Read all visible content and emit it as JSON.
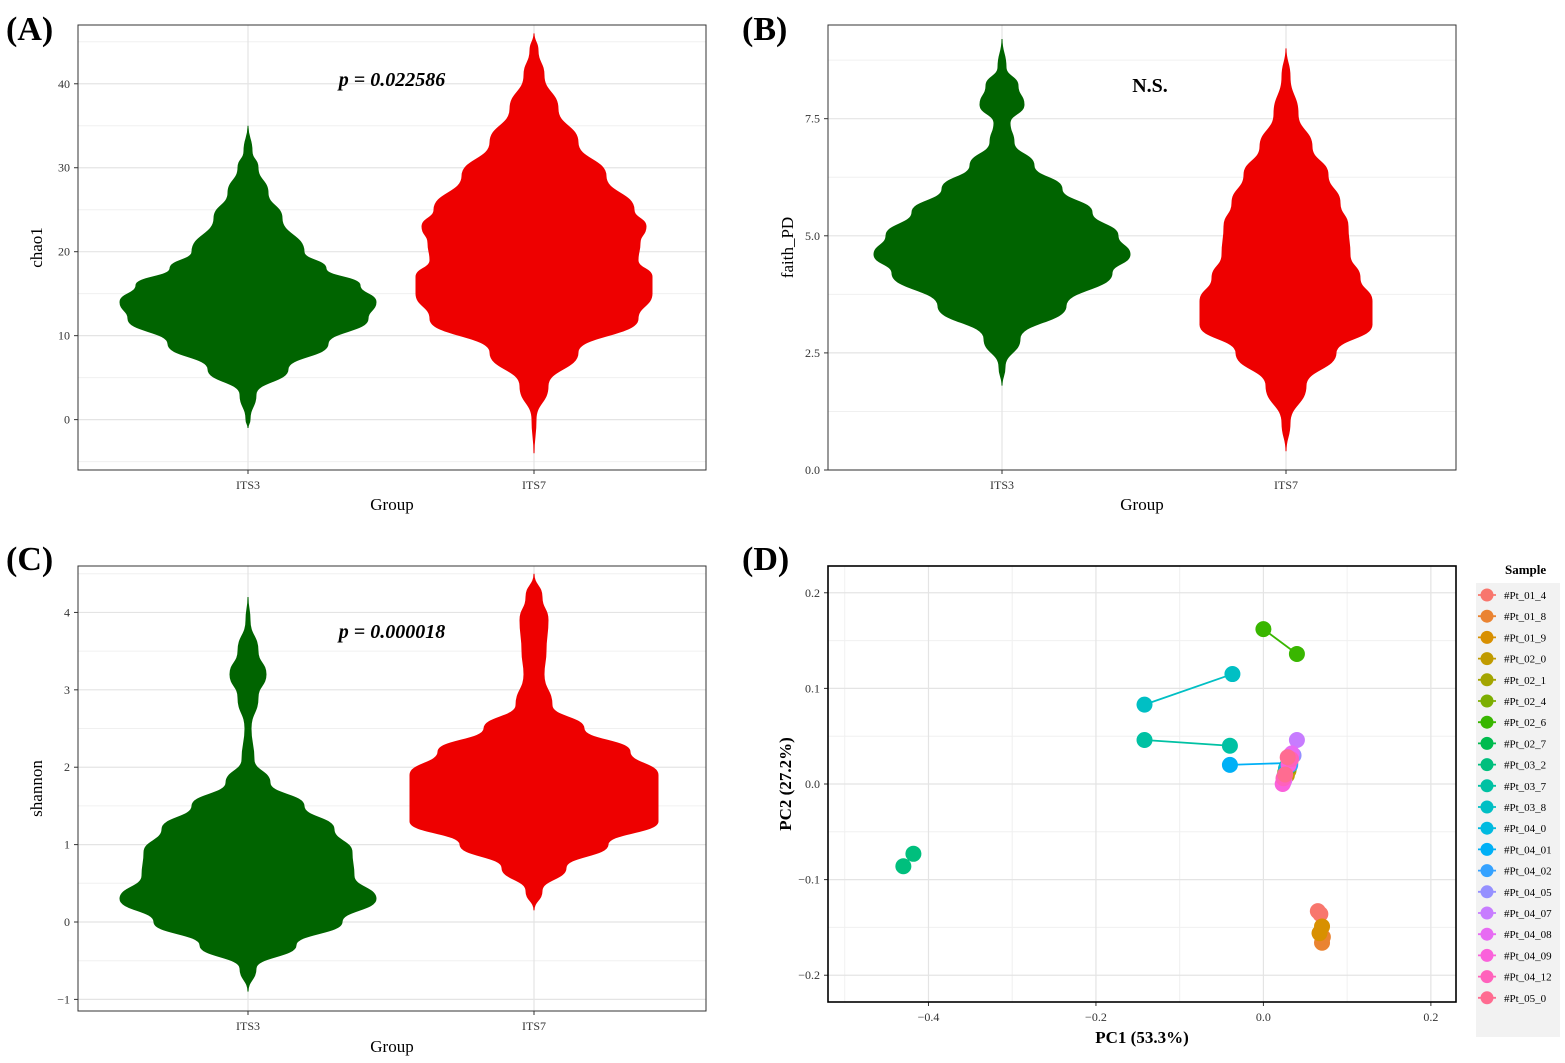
{
  "chart_data": [
    {
      "type": "violin",
      "panel_label": "(A)",
      "annotation": "p = 0.022586",
      "xlabel": "Group",
      "ylabel": "chao1",
      "categories": [
        "ITS3",
        "ITS7"
      ],
      "ylim": [
        -6,
        47
      ],
      "yticks": [
        0,
        10,
        20,
        30,
        40
      ],
      "colors": [
        "#006400",
        "#ee0000"
      ],
      "grid": true,
      "density": [
        [
          [
            -1,
            0
          ],
          [
            0,
            2
          ],
          [
            3,
            8
          ],
          [
            6,
            40
          ],
          [
            9,
            80
          ],
          [
            12,
            120
          ],
          [
            14,
            128
          ],
          [
            16,
            112
          ],
          [
            18,
            78
          ],
          [
            20,
            56
          ],
          [
            24,
            34
          ],
          [
            27,
            20
          ],
          [
            30,
            10
          ],
          [
            32,
            4
          ],
          [
            35,
            0
          ]
        ],
        [
          [
            -4,
            0
          ],
          [
            0,
            2
          ],
          [
            4,
            14
          ],
          [
            8,
            44
          ],
          [
            12,
            104
          ],
          [
            15,
            118
          ],
          [
            17,
            118
          ],
          [
            19,
            104
          ],
          [
            21,
            106
          ],
          [
            23,
            112
          ],
          [
            25,
            100
          ],
          [
            29,
            72
          ],
          [
            33,
            44
          ],
          [
            37,
            24
          ],
          [
            41,
            10
          ],
          [
            44,
            4
          ],
          [
            46,
            0
          ]
        ]
      ]
    },
    {
      "type": "violin",
      "panel_label": "(B)",
      "annotation": "N.S.",
      "xlabel": "Group",
      "ylabel": "faith_PD",
      "categories": [
        "ITS3",
        "ITS7"
      ],
      "ylim": [
        0,
        9.5
      ],
      "yticks": [
        0.0,
        2.5,
        5.0,
        7.5
      ],
      "colors": [
        "#006400",
        "#ee0000"
      ],
      "grid": true,
      "density": [
        [
          [
            1.8,
            0
          ],
          [
            2.2,
            3
          ],
          [
            2.8,
            18
          ],
          [
            3.5,
            64
          ],
          [
            4.2,
            110
          ],
          [
            4.6,
            128
          ],
          [
            5.0,
            116
          ],
          [
            5.5,
            90
          ],
          [
            6.0,
            60
          ],
          [
            6.5,
            32
          ],
          [
            7.0,
            12
          ],
          [
            7.4,
            8
          ],
          [
            7.8,
            22
          ],
          [
            8.2,
            16
          ],
          [
            8.6,
            4
          ],
          [
            9.2,
            0
          ]
        ],
        [
          [
            0.4,
            0
          ],
          [
            1.0,
            4
          ],
          [
            1.8,
            20
          ],
          [
            2.5,
            50
          ],
          [
            3.1,
            86
          ],
          [
            3.6,
            86
          ],
          [
            4.1,
            74
          ],
          [
            4.6,
            64
          ],
          [
            5.2,
            62
          ],
          [
            5.7,
            54
          ],
          [
            6.3,
            42
          ],
          [
            6.9,
            26
          ],
          [
            7.6,
            12
          ],
          [
            8.4,
            4
          ],
          [
            9.0,
            0
          ]
        ]
      ]
    },
    {
      "type": "violin",
      "panel_label": "(C)",
      "annotation": "p = 0.000018",
      "xlabel": "Group",
      "ylabel": "shannon",
      "categories": [
        "ITS3",
        "ITS7"
      ],
      "ylim": [
        -1.15,
        4.6
      ],
      "yticks": [
        -1,
        0,
        1,
        2,
        3,
        4
      ],
      "colors": [
        "#006400",
        "#ee0000"
      ],
      "grid": true,
      "density": [
        [
          [
            -0.9,
            0
          ],
          [
            -0.6,
            8
          ],
          [
            -0.3,
            48
          ],
          [
            0,
            94
          ],
          [
            0.3,
            128
          ],
          [
            0.6,
            106
          ],
          [
            0.9,
            104
          ],
          [
            1.2,
            86
          ],
          [
            1.5,
            56
          ],
          [
            1.8,
            22
          ],
          [
            2.1,
            6
          ],
          [
            2.5,
            3
          ],
          [
            2.9,
            10
          ],
          [
            3.2,
            18
          ],
          [
            3.5,
            10
          ],
          [
            3.9,
            2
          ],
          [
            4.2,
            0
          ]
        ],
        [
          [
            0.15,
            0
          ],
          [
            0.4,
            8
          ],
          [
            0.7,
            32
          ],
          [
            1.0,
            74
          ],
          [
            1.3,
            124
          ],
          [
            1.6,
            124
          ],
          [
            1.9,
            124
          ],
          [
            2.2,
            96
          ],
          [
            2.5,
            50
          ],
          [
            2.8,
            18
          ],
          [
            3.2,
            10
          ],
          [
            3.5,
            12
          ],
          [
            3.9,
            14
          ],
          [
            4.2,
            8
          ],
          [
            4.5,
            0
          ]
        ]
      ]
    },
    {
      "type": "scatter",
      "panel_label": "(D)",
      "xlabel": "PC1 (53.3%)",
      "ylabel": "PC2 (27.2%)",
      "xlim": [
        -0.52,
        0.23
      ],
      "ylim": [
        -0.228,
        0.228
      ],
      "xticks": [
        -0.4,
        -0.2,
        0.0,
        0.2
      ],
      "yticks": [
        -0.2,
        -0.1,
        0.0,
        0.1,
        0.2
      ],
      "grid": true,
      "legend_title": "Sample",
      "legend_position": "right",
      "series": [
        {
          "name": "#Pt_01_4",
          "color": "#F8766D",
          "points": [
            [
              0.065,
              -0.133
            ],
            [
              0.068,
              -0.136
            ]
          ]
        },
        {
          "name": "#Pt_01_8",
          "color": "#EA8331",
          "points": [
            [
              0.07,
              -0.166
            ],
            [
              0.071,
              -0.16
            ]
          ]
        },
        {
          "name": "#Pt_01_9",
          "color": "#D89000",
          "points": [
            [
              0.067,
              -0.156
            ],
            [
              0.07,
              -0.149
            ]
          ]
        },
        {
          "name": "#Pt_02_0",
          "color": "#C09B00",
          "points": [
            [
              0.028,
              0.009
            ],
            [
              0.03,
              0.014
            ]
          ]
        },
        {
          "name": "#Pt_02_1",
          "color": "#A3A500",
          "points": [
            [
              0.027,
              0.016
            ],
            [
              0.032,
              0.022
            ]
          ]
        },
        {
          "name": "#Pt_02_4",
          "color": "#7CAE00",
          "points": [
            [
              0.026,
              0.012
            ],
            [
              0.031,
              0.018
            ]
          ]
        },
        {
          "name": "#Pt_02_6",
          "color": "#39B600",
          "points": [
            [
              0.0,
              0.162
            ],
            [
              0.04,
              0.136
            ]
          ]
        },
        {
          "name": "#Pt_02_7",
          "color": "#00BB4E",
          "points": [
            [
              0.028,
              0.018
            ],
            [
              0.03,
              0.024
            ]
          ]
        },
        {
          "name": "#Pt_03_2",
          "color": "#00BF7D",
          "points": [
            [
              -0.43,
              -0.086
            ],
            [
              -0.418,
              -0.073
            ]
          ]
        },
        {
          "name": "#Pt_03_7",
          "color": "#00C1A3",
          "points": [
            [
              -0.142,
              0.046
            ],
            [
              -0.04,
              0.04
            ]
          ]
        },
        {
          "name": "#Pt_03_8",
          "color": "#00BFC4",
          "points": [
            [
              -0.142,
              0.083
            ],
            [
              -0.037,
              0.115
            ]
          ]
        },
        {
          "name": "#Pt_04_0",
          "color": "#00BAE0",
          "points": [
            [
              0.027,
              0.016
            ],
            [
              0.033,
              0.028
            ]
          ]
        },
        {
          "name": "#Pt_04_01",
          "color": "#00B0F6",
          "points": [
            [
              -0.04,
              0.02
            ],
            [
              0.03,
              0.022
            ]
          ]
        },
        {
          "name": "#Pt_04_02",
          "color": "#35A2FF",
          "points": [
            [
              0.025,
              0.008
            ],
            [
              0.032,
              0.02
            ]
          ]
        },
        {
          "name": "#Pt_04_05",
          "color": "#9590FF",
          "points": [
            [
              0.024,
              0.002
            ],
            [
              0.036,
              0.03
            ]
          ]
        },
        {
          "name": "#Pt_04_07",
          "color": "#C77CFF",
          "points": [
            [
              0.032,
              0.03
            ],
            [
              0.04,
              0.046
            ]
          ]
        },
        {
          "name": "#Pt_04_08",
          "color": "#E76BF3",
          "points": [
            [
              0.025,
              0.004
            ],
            [
              0.034,
              0.032
            ]
          ]
        },
        {
          "name": "#Pt_04_09",
          "color": "#FA62DB",
          "points": [
            [
              0.023,
              0.0
            ],
            [
              0.03,
              0.02
            ]
          ]
        },
        {
          "name": "#Pt_04_12",
          "color": "#FF62BC",
          "points": [
            [
              0.024,
              0.006
            ],
            [
              0.033,
              0.026
            ]
          ]
        },
        {
          "name": "#Pt_05_0",
          "color": "#FF6C91",
          "points": [
            [
              0.026,
              0.01
            ],
            [
              0.029,
              0.028
            ]
          ]
        }
      ]
    }
  ]
}
